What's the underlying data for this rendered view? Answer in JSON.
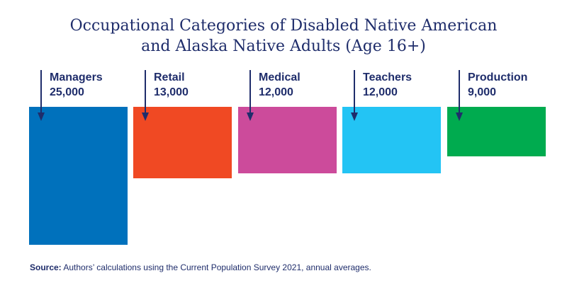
{
  "chart_data": {
    "type": "bar",
    "title_lines": [
      "Occupational Categories of Disabled Native American",
      "and Alaska Native Adults (Age 16+)"
    ],
    "categories": [
      "Managers",
      "Retail",
      "Medical",
      "Teachers",
      "Production"
    ],
    "values": [
      25000,
      13000,
      12000,
      12000,
      9000
    ],
    "value_labels": [
      "25,000",
      "13,000",
      "12,000",
      "12,000",
      "9,000"
    ],
    "colors": [
      "#0071bc",
      "#f04923",
      "#cc4b9b",
      "#23c4f4",
      "#00ab4f"
    ],
    "xlabel": "",
    "ylabel": "",
    "ylim": [
      0,
      25000
    ],
    "grid": false,
    "legend": "none"
  },
  "source": {
    "label": "Source:",
    "text": " Authors’ calculations using the Current Population Survey 2021, annual averages."
  }
}
